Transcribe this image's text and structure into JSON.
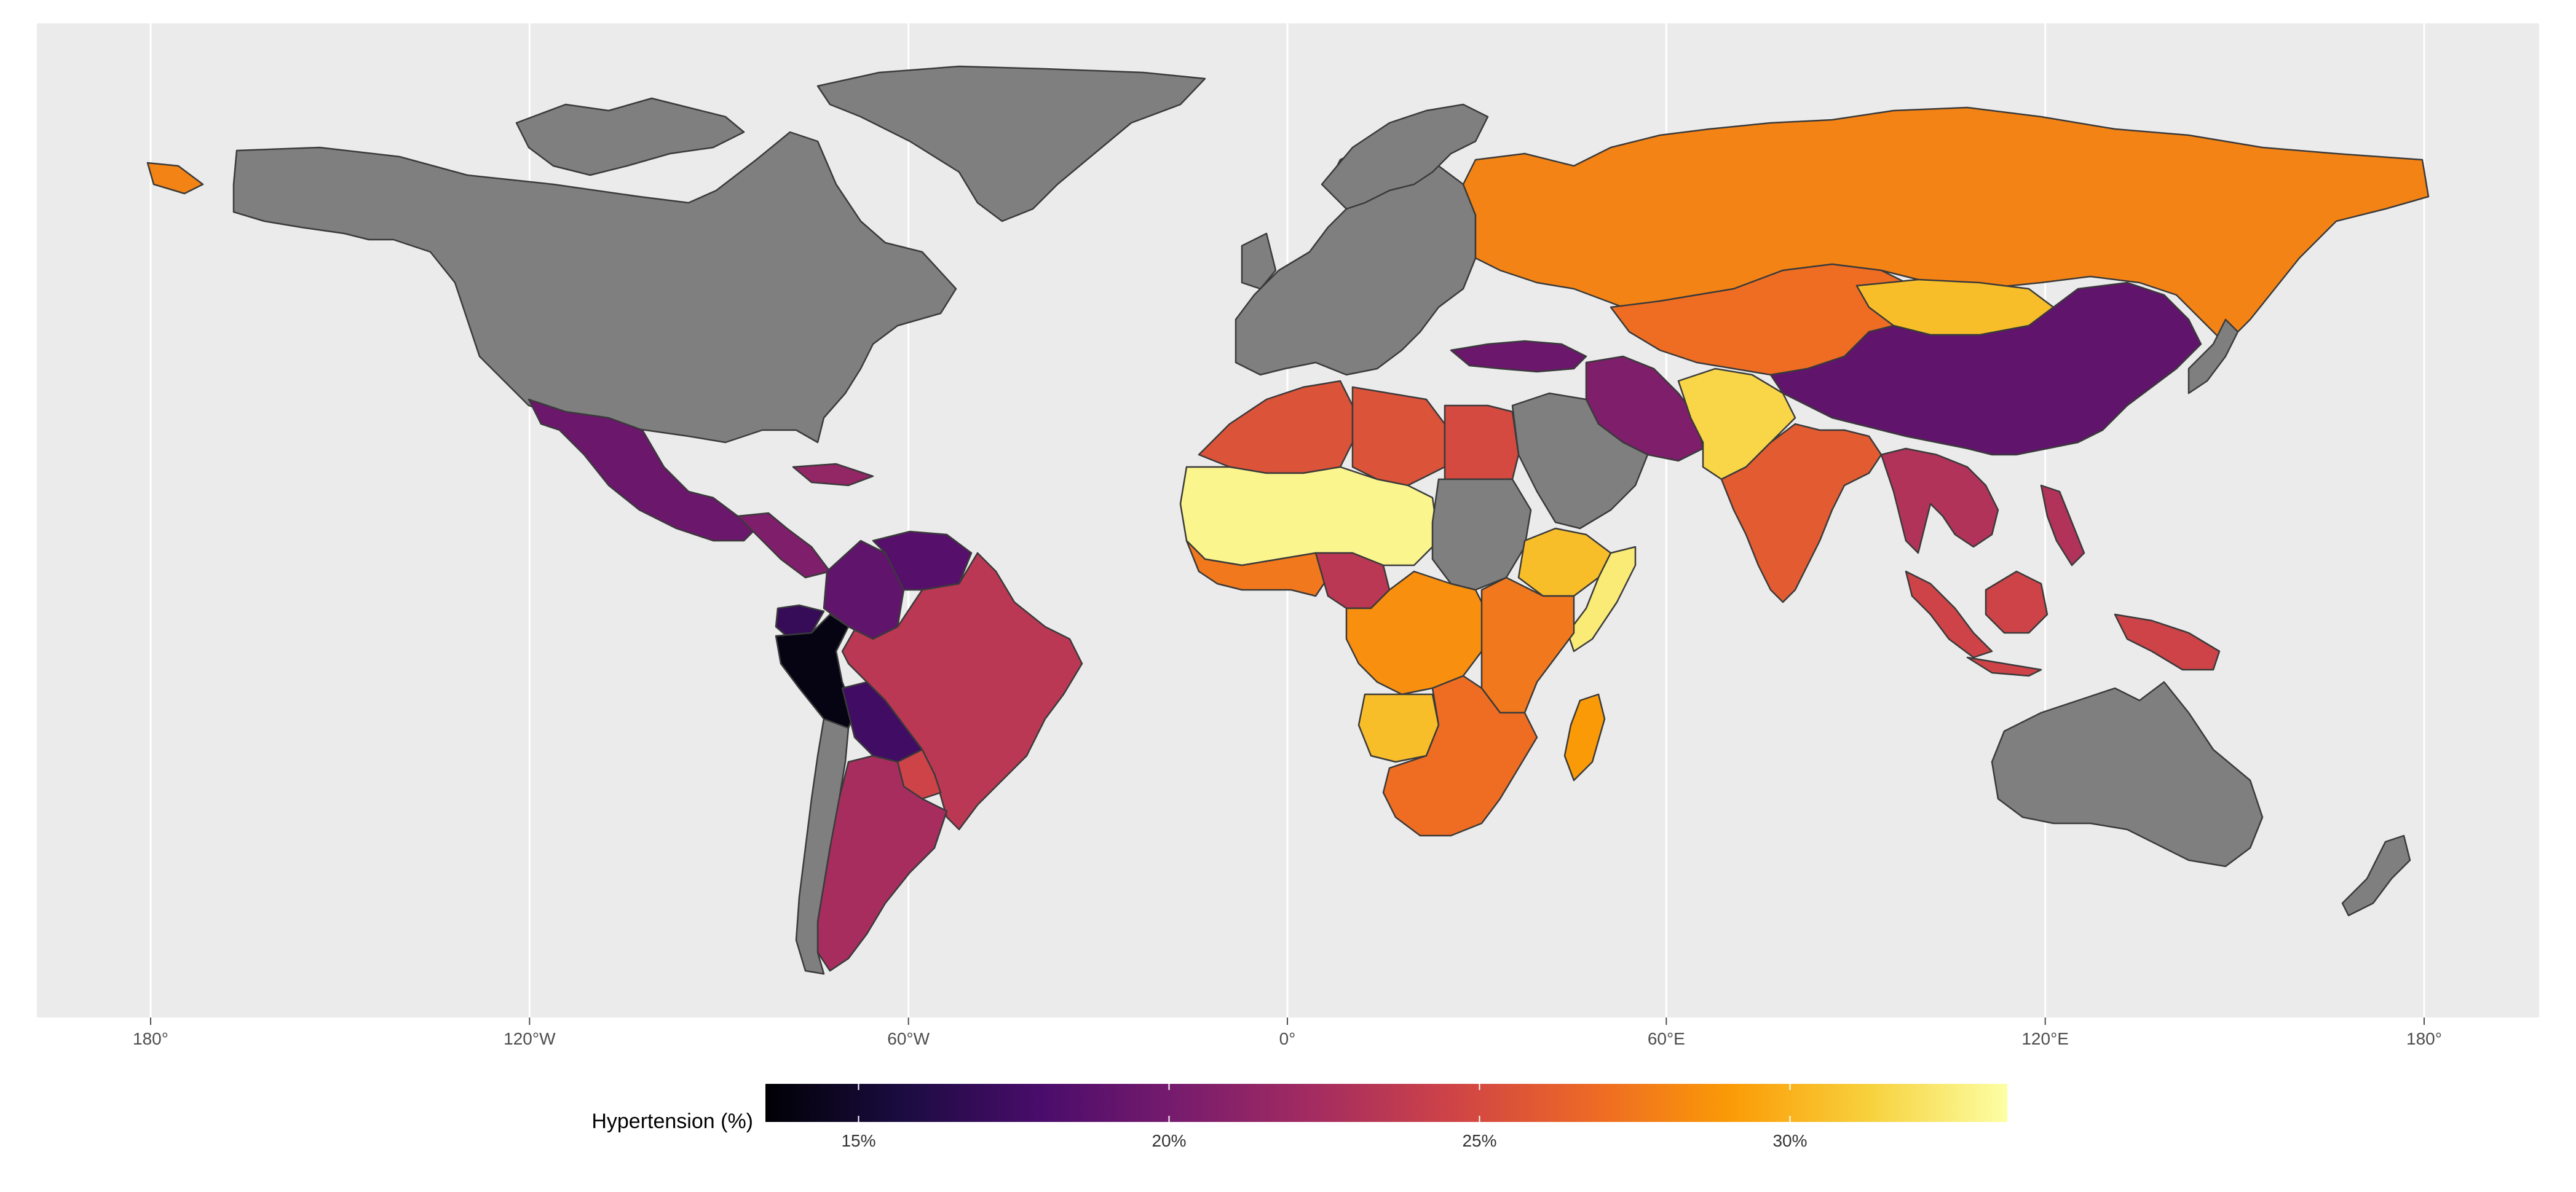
{
  "map": {
    "panel_background": "#ebebeb",
    "gridline_color": "#ffffff",
    "no_data_color": "#7f7f7f",
    "x_ticks": [
      {
        "lon": -180,
        "label": "180°"
      },
      {
        "lon": -120,
        "label": "120°W"
      },
      {
        "lon": -60,
        "label": "60°W"
      },
      {
        "lon": 0,
        "label": "0°"
      },
      {
        "lon": 60,
        "label": "60°E"
      },
      {
        "lon": 120,
        "label": "120°E"
      },
      {
        "lon": 180,
        "label": "180°"
      }
    ]
  },
  "legend": {
    "title": "Hypertension (%)",
    "range": [
      13.5,
      33.5
    ],
    "ticks": [
      {
        "value": 15,
        "label": "15%"
      },
      {
        "value": 20,
        "label": "20%"
      },
      {
        "value": 25,
        "label": "25%"
      },
      {
        "value": 30,
        "label": "30%"
      }
    ],
    "colors": [
      "#000004",
      "#1b0c41",
      "#4a0c6b",
      "#781c6d",
      "#a52c60",
      "#cf4446",
      "#ed6925",
      "#fb9b06",
      "#f7d13d",
      "#fcffa4"
    ]
  },
  "regions": [
    {
      "name": "North America",
      "status": "no data"
    },
    {
      "name": "Greenland",
      "status": "no data"
    },
    {
      "name": "Mexico",
      "value": 19.5
    },
    {
      "name": "Central America",
      "value": 20.5
    },
    {
      "name": "Cuba",
      "value": 21.5
    },
    {
      "name": "Colombia",
      "value": 19.0
    },
    {
      "name": "Venezuela",
      "value": 18.5
    },
    {
      "name": "Ecuador",
      "value": 17.0
    },
    {
      "name": "Peru",
      "value": 14.0
    },
    {
      "name": "Bolivia",
      "value": 17.5
    },
    {
      "name": "Brazil",
      "value": 23.5
    },
    {
      "name": "Paraguay",
      "value": 24.5
    },
    {
      "name": "Argentina",
      "value": 22.5
    },
    {
      "name": "Chile",
      "status": "no data"
    },
    {
      "name": "Europe",
      "status": "no data"
    },
    {
      "name": "Russia",
      "value": 28.0
    },
    {
      "name": "Kazakhstan",
      "value": 27.0
    },
    {
      "name": "Mongolia",
      "value": 30.5
    },
    {
      "name": "China",
      "value": 19.0
    },
    {
      "name": "Turkey",
      "value": 19.5
    },
    {
      "name": "Iran",
      "value": 20.5
    },
    {
      "name": "Afghanistan and Pakistan",
      "value": 31.5
    },
    {
      "name": "India",
      "value": 26.0
    },
    {
      "name": "Southeast Asia",
      "value": 23.0
    },
    {
      "name": "Indonesia",
      "value": 24.5
    },
    {
      "name": "Philippines",
      "value": 23.0
    },
    {
      "name": "Papua New Guinea",
      "value": 24.5
    },
    {
      "name": "Japan",
      "status": "no data"
    },
    {
      "name": "Arabian Peninsula",
      "status": "no data"
    },
    {
      "name": "North Africa",
      "value": 25.5
    },
    {
      "name": "Egypt",
      "value": 25.0
    },
    {
      "name": "Sahel",
      "value": 33.0
    },
    {
      "name": "Sudan",
      "status": "no data"
    },
    {
      "name": "West Africa",
      "value": 27.5
    },
    {
      "name": "Nigeria",
      "value": 23.5
    },
    {
      "name": "Ethiopia",
      "value": 30.5
    },
    {
      "name": "Somalia",
      "value": 32.5
    },
    {
      "name": "Central Africa",
      "value": 28.5
    },
    {
      "name": "East Africa",
      "value": 27.5
    },
    {
      "name": "Angola",
      "value": 30.5
    },
    {
      "name": "Southern Africa",
      "value": 27.0
    },
    {
      "name": "Madagascar",
      "value": 29.0
    },
    {
      "name": "Australia",
      "status": "no data"
    },
    {
      "name": "New Zealand",
      "status": "no data"
    },
    {
      "name": "Alaska Tip",
      "value": 28.0
    }
  ]
}
